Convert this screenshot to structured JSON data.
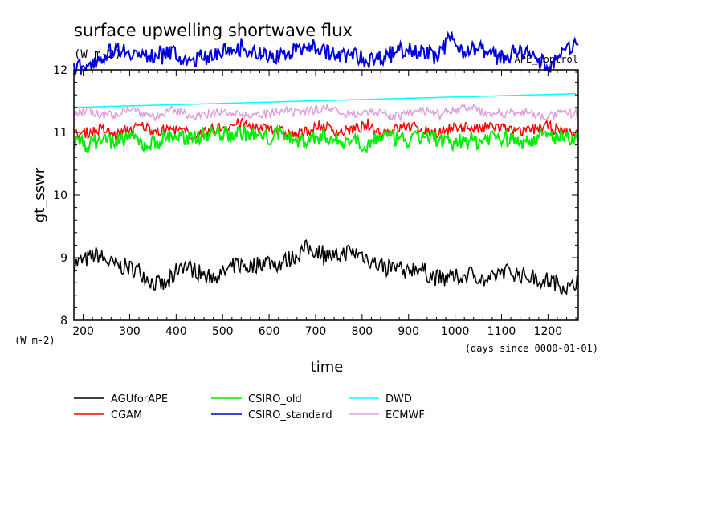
{
  "chart_data": {
    "type": "line",
    "title": "surface upwelling shortwave flux",
    "title_units": "(W m-2)",
    "tag": "APE_control",
    "xlabel": "time",
    "x_units": "(days since 0000-01-01)",
    "ylabel": "gt_sswr",
    "y_units": "(W m-2)",
    "xlim": [
      180,
      1265
    ],
    "ylim": [
      8,
      12
    ],
    "x_ticks": [
      200,
      300,
      400,
      500,
      600,
      700,
      800,
      900,
      1000,
      1100,
      1200
    ],
    "y_ticks": [
      8,
      9,
      10,
      11,
      12
    ],
    "grid": false,
    "legend_position": "bottom",
    "series": [
      {
        "name": "AGUforAPE",
        "color": "#000000",
        "x": [
          180,
          200,
          230,
          260,
          290,
          320,
          350,
          380,
          410,
          440,
          470,
          500,
          530,
          560,
          590,
          620,
          650,
          680,
          710,
          740,
          770,
          800,
          830,
          860,
          890,
          920,
          950,
          980,
          1010,
          1040,
          1070,
          1100,
          1130,
          1160,
          1190,
          1220,
          1250,
          1265
        ],
        "values": [
          8.9,
          8.95,
          9.05,
          8.9,
          8.85,
          8.8,
          8.6,
          8.55,
          8.9,
          8.8,
          8.7,
          8.75,
          8.9,
          8.85,
          8.95,
          8.9,
          9.0,
          9.15,
          9.1,
          9.0,
          9.1,
          9.05,
          8.9,
          8.85,
          8.8,
          8.85,
          8.7,
          8.65,
          8.7,
          8.75,
          8.6,
          8.8,
          8.75,
          8.7,
          8.65,
          8.6,
          8.5,
          8.7
        ]
      },
      {
        "name": "CGAM",
        "color": "#ff0000",
        "x": [
          180,
          210,
          240,
          270,
          300,
          330,
          360,
          390,
          420,
          450,
          480,
          510,
          540,
          570,
          600,
          630,
          660,
          690,
          720,
          750,
          780,
          810,
          840,
          870,
          900,
          930,
          960,
          990,
          1020,
          1050,
          1080,
          1110,
          1140,
          1170,
          1200,
          1230,
          1265
        ],
        "values": [
          10.95,
          11.0,
          11.05,
          10.95,
          11.05,
          11.1,
          11.0,
          11.05,
          11.0,
          10.95,
          11.05,
          11.1,
          11.15,
          11.05,
          11.1,
          11.0,
          10.95,
          11.05,
          11.1,
          11.0,
          11.05,
          11.1,
          11.0,
          11.05,
          11.1,
          11.05,
          11.0,
          11.05,
          11.1,
          11.05,
          11.1,
          11.05,
          11.0,
          11.05,
          11.1,
          11.0,
          11.0
        ]
      },
      {
        "name": "CSIRO_old",
        "color": "#00ee00",
        "x": [
          180,
          210,
          240,
          270,
          300,
          330,
          360,
          390,
          420,
          450,
          480,
          510,
          540,
          570,
          600,
          630,
          660,
          690,
          720,
          750,
          780,
          810,
          840,
          870,
          900,
          930,
          960,
          990,
          1020,
          1050,
          1080,
          1110,
          1140,
          1170,
          1200,
          1230,
          1265
        ],
        "values": [
          10.85,
          10.8,
          10.9,
          10.85,
          10.95,
          10.8,
          10.85,
          10.95,
          10.9,
          10.95,
          11.0,
          10.95,
          11.0,
          10.95,
          10.9,
          11.0,
          10.85,
          10.9,
          10.95,
          10.85,
          10.9,
          10.8,
          10.95,
          10.9,
          10.85,
          10.95,
          10.9,
          10.8,
          10.9,
          10.85,
          10.95,
          10.9,
          10.85,
          10.9,
          10.95,
          10.9,
          10.85
        ]
      },
      {
        "name": "CSIRO_standard",
        "color": "#0000dd",
        "x": [
          180,
          210,
          240,
          270,
          300,
          330,
          360,
          390,
          420,
          450,
          480,
          510,
          540,
          570,
          600,
          630,
          660,
          690,
          720,
          750,
          780,
          810,
          840,
          870,
          900,
          930,
          960,
          990,
          1020,
          1050,
          1080,
          1110,
          1140,
          1170,
          1200,
          1230,
          1265
        ],
        "values": [
          12.0,
          12.1,
          12.2,
          12.35,
          12.3,
          12.2,
          12.25,
          12.3,
          12.1,
          12.2,
          12.25,
          12.3,
          12.35,
          12.3,
          12.2,
          12.25,
          12.3,
          12.4,
          12.3,
          12.2,
          12.25,
          12.15,
          12.2,
          12.3,
          12.35,
          12.3,
          12.2,
          12.5,
          12.3,
          12.35,
          12.25,
          12.2,
          12.3,
          12.2,
          12.05,
          12.25,
          12.45
        ]
      },
      {
        "name": "DWD",
        "color": "#00ffff",
        "x": [
          180,
          1265
        ],
        "values": [
          11.4,
          11.62
        ]
      },
      {
        "name": "ECMWF",
        "color": "#dda0dd",
        "x": [
          180,
          210,
          240,
          270,
          300,
          330,
          360,
          390,
          420,
          450,
          480,
          510,
          540,
          570,
          600,
          630,
          660,
          690,
          720,
          750,
          780,
          810,
          840,
          870,
          900,
          930,
          960,
          990,
          1020,
          1050,
          1080,
          1110,
          1140,
          1170,
          1200,
          1230,
          1265
        ],
        "values": [
          11.3,
          11.35,
          11.25,
          11.3,
          11.4,
          11.3,
          11.25,
          11.35,
          11.3,
          11.25,
          11.3,
          11.35,
          11.3,
          11.25,
          11.3,
          11.35,
          11.3,
          11.35,
          11.4,
          11.35,
          11.3,
          11.35,
          11.3,
          11.25,
          11.3,
          11.35,
          11.3,
          11.35,
          11.4,
          11.35,
          11.3,
          11.3,
          11.35,
          11.3,
          11.25,
          11.3,
          11.3
        ]
      }
    ]
  }
}
